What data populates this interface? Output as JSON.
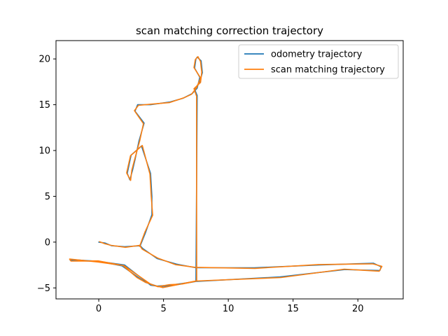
{
  "chart_data": {
    "type": "line",
    "title": "scan matching correction trajectory",
    "xlabel": "",
    "ylabel": "",
    "xlim": [
      -3.3,
      23.5
    ],
    "ylim": [
      -6.2,
      22.0
    ],
    "xticks": [
      0,
      5,
      10,
      15,
      20
    ],
    "yticks": [
      -5,
      0,
      5,
      10,
      15,
      20
    ],
    "grid": false,
    "legend_position": "top-right",
    "series": [
      {
        "name": "odometry trajectory",
        "color": "#1f77b4",
        "x": [
          0,
          0.5,
          1,
          2,
          3.2,
          3.4,
          4.5,
          6,
          7.5,
          12,
          17,
          21.2,
          21.8,
          21.7,
          19,
          14,
          7.5,
          5,
          4,
          2,
          0,
          -2.2,
          -2.2,
          0,
          1.8,
          3,
          3.6,
          4.5,
          5.5,
          6.5,
          7.5,
          7.6,
          7.4,
          7.8,
          8,
          7.9,
          7.6,
          7.5,
          7.4,
          7.8,
          7.6,
          7.2,
          6.5,
          5.5,
          4,
          3,
          2.8,
          3.5,
          3.1,
          2.8,
          2.6,
          2.4,
          2.2,
          2.5,
          3.3,
          4,
          4.1,
          4.1,
          3.6,
          3.2
        ],
        "y": [
          0,
          -0.1,
          -0.4,
          -0.5,
          -0.4,
          -0.7,
          -1.8,
          -2.4,
          -2.8,
          -2.8,
          -2.5,
          -2.3,
          -2.7,
          -3.1,
          -3,
          -3.8,
          -4.3,
          -4.9,
          -4.7,
          -2.5,
          -2.1,
          -2,
          -1.9,
          -2.1,
          -2.6,
          -3.8,
          -4.4,
          -4.8,
          -4.7,
          -4.5,
          -4.3,
          16,
          16.7,
          17.5,
          18.5,
          19.8,
          20.2,
          20,
          19,
          18,
          16.8,
          16.2,
          15.7,
          15.3,
          15,
          15,
          14.3,
          13,
          11,
          9,
          7.8,
          6.8,
          7.5,
          9.5,
          10.5,
          7.5,
          5,
          3,
          1,
          -0.4
        ],
        "note": ""
      },
      {
        "name": "scan matching trajectory",
        "color": "#ff7f0e",
        "x": [],
        "y": []
      }
    ]
  }
}
